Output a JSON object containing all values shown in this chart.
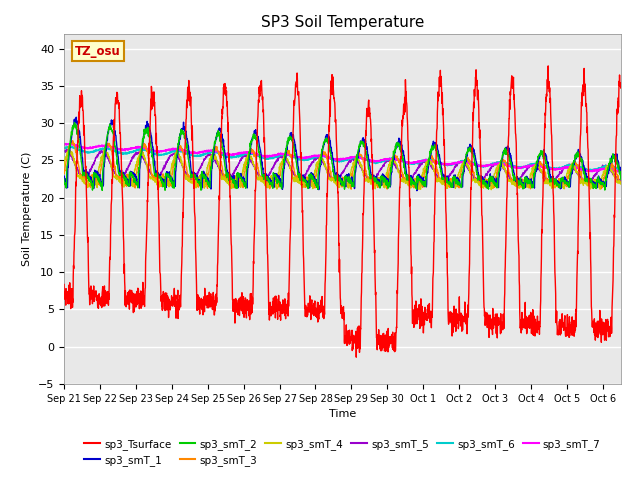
{
  "title": "SP3 Soil Temperature",
  "ylabel": "Soil Temperature (C)",
  "xlabel": "Time",
  "annotation": "TZ_osu",
  "ylim": [
    -5,
    42
  ],
  "series_colors": {
    "sp3_Tsurface": "#FF0000",
    "sp3_smT_1": "#0000CC",
    "sp3_smT_2": "#00CC00",
    "sp3_smT_3": "#FF8800",
    "sp3_smT_4": "#CCCC00",
    "sp3_smT_5": "#9900CC",
    "sp3_smT_6": "#00CCCC",
    "sp3_smT_7": "#FF00FF"
  },
  "x_tick_labels": [
    "Sep 21",
    "Sep 22",
    "Sep 23",
    "Sep 24",
    "Sep 25",
    "Sep 26",
    "Sep 27",
    "Sep 28",
    "Sep 29",
    "Sep 30",
    "Oct 1",
    "Oct 2",
    "Oct 3",
    "Oct 4",
    "Oct 5",
    "Oct 6"
  ],
  "y_ticks": [
    -5,
    0,
    5,
    10,
    15,
    20,
    25,
    30,
    35,
    40
  ],
  "n_days": 15.5,
  "points_per_day": 144,
  "background_color": "#E8E8E8",
  "grid_color": "white",
  "figsize": [
    6.4,
    4.8
  ],
  "dpi": 100
}
